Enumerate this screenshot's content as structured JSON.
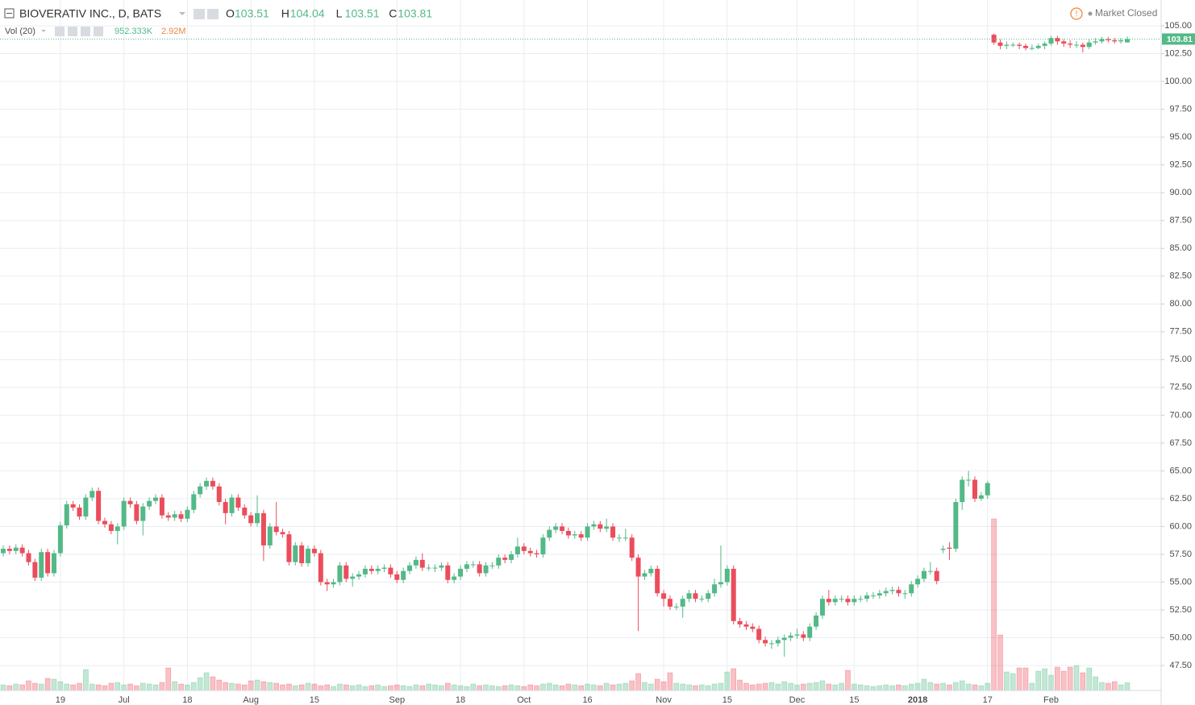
{
  "header": {
    "symbol": "BIOVERATIV INC., D, BATS",
    "ohlc": [
      {
        "label": "O",
        "value": 103.51
      },
      {
        "label": "H",
        "value": 104.04
      },
      {
        "label": "L",
        "value": 103.51
      },
      {
        "label": "C",
        "value": 103.81
      }
    ],
    "volume_indicator": "Vol (20)",
    "volume_value": "952.333K",
    "volume_ma": "2.92M",
    "status": "Market Closed"
  },
  "chart_data": {
    "type": "candlestick",
    "up_color": "#53b987",
    "down_color": "#eb4d5c",
    "grid": true,
    "categories": [
      null,
      null,
      null,
      null,
      null,
      null,
      null,
      null,
      null,
      "19",
      null,
      null,
      null,
      null,
      null,
      null,
      null,
      null,
      null,
      "Jul",
      null,
      null,
      null,
      null,
      null,
      null,
      null,
      null,
      null,
      "18",
      null,
      null,
      null,
      null,
      null,
      null,
      null,
      null,
      null,
      "Aug",
      null,
      null,
      null,
      null,
      null,
      null,
      null,
      null,
      null,
      "15",
      null,
      null,
      null,
      null,
      null,
      null,
      null,
      null,
      null,
      null,
      null,
      null,
      "Sep",
      null,
      null,
      null,
      null,
      null,
      null,
      null,
      null,
      null,
      "18",
      null,
      null,
      null,
      null,
      null,
      null,
      null,
      null,
      null,
      "Oct",
      null,
      null,
      null,
      null,
      null,
      null,
      null,
      null,
      null,
      "16",
      null,
      null,
      null,
      null,
      null,
      null,
      null,
      null,
      null,
      null,
      null,
      "Nov",
      null,
      null,
      null,
      null,
      null,
      null,
      null,
      null,
      null,
      "15",
      null,
      null,
      null,
      null,
      null,
      null,
      null,
      null,
      null,
      null,
      "Dec",
      null,
      null,
      null,
      null,
      null,
      null,
      null,
      null,
      "15",
      null,
      null,
      null,
      null,
      null,
      null,
      null,
      null,
      null,
      "2018",
      null,
      null,
      null,
      null,
      null,
      null,
      null,
      null,
      null,
      null,
      "17",
      null,
      null,
      null,
      null,
      null,
      null,
      null,
      null,
      null,
      "Feb",
      null,
      null,
      null,
      null,
      null,
      null,
      null,
      null,
      null,
      null,
      null,
      null
    ],
    "open": [
      57.6,
      58.0,
      57.8,
      58.1,
      57.6,
      56.8,
      55.4,
      57.7,
      55.8,
      57.6,
      60.1,
      62.0,
      61.7,
      60.9,
      62.6,
      63.2,
      60.5,
      60.2,
      59.6,
      60.0,
      62.3,
      62.0,
      60.5,
      61.8,
      62.3,
      62.6,
      61.0,
      60.8,
      61.1,
      60.7,
      61.5,
      62.9,
      63.6,
      64.1,
      63.6,
      62.2,
      61.2,
      62.6,
      61.7,
      61.0,
      60.3,
      61.2,
      58.3,
      60.0,
      59.5,
      59.3,
      56.8,
      58.3,
      56.7,
      58.0,
      57.6,
      55.0,
      54.8,
      55.0,
      56.5,
      55.3,
      55.5,
      55.7,
      56.2,
      56.0,
      56.2,
      56.3,
      55.7,
      55.2,
      56.0,
      56.5,
      57.0,
      56.3,
      56.3,
      56.3,
      56.5,
      55.2,
      55.5,
      56.2,
      56.6,
      56.6,
      55.8,
      56.5,
      56.5,
      57.2,
      57.0,
      57.5,
      58.2,
      57.8,
      57.6,
      57.5,
      59.0,
      59.7,
      60.0,
      59.6,
      59.2,
      59.3,
      59.0,
      60.0,
      60.2,
      59.8,
      60.0,
      59.0,
      59.0,
      59.0,
      57.2,
      55.5,
      55.8,
      56.2,
      54.0,
      53.5,
      52.8,
      52.8,
      53.5,
      54.0,
      53.5,
      53.5,
      54.0,
      54.8,
      55.0,
      56.2,
      51.5,
      51.2,
      51.0,
      50.8,
      49.8,
      49.5,
      49.5,
      49.8,
      50.0,
      50.2,
      50.3,
      50.0,
      51.0,
      52.0,
      53.5,
      53.2,
      53.5,
      53.5,
      53.2,
      53.5,
      53.5,
      53.8,
      53.8,
      54.0,
      54.2,
      54.3,
      54.0,
      54.0,
      54.8,
      55.3,
      56.0,
      56.0,
      57.9,
      58.1,
      58.0,
      62.2,
      64.2,
      64.2,
      62.5,
      62.8,
      104.2,
      103.5,
      103.2,
      103.3,
      103.3,
      103.2,
      103.0,
      103.0,
      103.2,
      103.4,
      103.9,
      103.6,
      103.4,
      103.3,
      103.3,
      103.1,
      103.5,
      103.6,
      103.8,
      103.7,
      103.6,
      103.51
    ],
    "high": [
      58.3,
      58.3,
      58.4,
      58.4,
      57.9,
      57.1,
      58.0,
      58.0,
      57.9,
      60.4,
      62.3,
      62.3,
      62.0,
      62.9,
      63.5,
      63.5,
      60.8,
      60.5,
      60.3,
      62.6,
      62.6,
      62.3,
      62.1,
      62.6,
      62.9,
      62.9,
      61.3,
      61.4,
      61.4,
      61.8,
      63.2,
      63.9,
      64.4,
      64.4,
      63.9,
      62.5,
      62.9,
      62.9,
      62.0,
      61.3,
      62.8,
      61.5,
      60.3,
      62.2,
      59.8,
      59.6,
      58.6,
      58.6,
      58.3,
      58.3,
      57.9,
      55.3,
      55.3,
      56.8,
      56.8,
      55.8,
      56.0,
      56.5,
      56.5,
      56.5,
      56.6,
      56.6,
      56.0,
      56.3,
      56.8,
      57.3,
      57.6,
      56.6,
      56.6,
      56.8,
      56.8,
      55.8,
      56.5,
      56.9,
      56.9,
      56.9,
      56.8,
      56.8,
      57.5,
      57.5,
      57.8,
      59.0,
      58.5,
      58.1,
      57.9,
      59.3,
      60.0,
      60.3,
      60.3,
      59.9,
      59.6,
      59.6,
      60.3,
      60.5,
      60.5,
      60.7,
      60.3,
      59.3,
      59.8,
      59.3,
      57.5,
      56.1,
      56.5,
      56.5,
      54.3,
      53.8,
      53.1,
      53.8,
      54.3,
      54.3,
      53.8,
      54.3,
      55.3,
      58.3,
      56.5,
      56.5,
      51.8,
      51.5,
      51.3,
      51.1,
      50.1,
      49.8,
      50.1,
      50.3,
      50.5,
      50.8,
      50.6,
      51.3,
      52.3,
      53.8,
      54.3,
      53.8,
      53.8,
      53.8,
      53.8,
      53.8,
      54.1,
      54.1,
      54.3,
      54.5,
      54.6,
      54.6,
      54.3,
      55.1,
      55.6,
      56.3,
      56.8,
      56.3,
      58.3,
      58.6,
      62.5,
      64.5,
      65.0,
      64.5,
      63.1,
      64.1,
      104.3,
      103.8,
      103.6,
      103.5,
      103.5,
      103.4,
      103.3,
      103.4,
      103.6,
      104.1,
      104.1,
      103.8,
      103.7,
      103.6,
      103.5,
      103.8,
      103.9,
      104.0,
      104.0,
      103.9,
      103.9,
      104.04
    ],
    "low": [
      57.3,
      57.5,
      57.5,
      57.3,
      56.5,
      55.1,
      55.1,
      55.5,
      55.5,
      57.3,
      59.8,
      61.4,
      60.6,
      60.6,
      62.3,
      60.2,
      59.9,
      59.3,
      58.4,
      59.7,
      61.7,
      60.2,
      59.2,
      61.5,
      62.0,
      60.7,
      60.5,
      60.5,
      60.4,
      60.4,
      61.2,
      62.6,
      63.3,
      63.3,
      61.9,
      60.2,
      60.9,
      61.4,
      60.7,
      60.0,
      60.0,
      56.9,
      58.0,
      59.2,
      59.0,
      56.5,
      56.5,
      56.4,
      56.4,
      57.3,
      54.7,
      54.2,
      54.5,
      54.7,
      55.0,
      54.6,
      55.2,
      55.4,
      55.7,
      55.7,
      55.9,
      55.4,
      54.9,
      54.9,
      55.7,
      56.2,
      56.0,
      56.0,
      55.9,
      56.0,
      54.9,
      54.9,
      55.2,
      55.9,
      56.3,
      55.5,
      55.5,
      56.2,
      56.2,
      56.7,
      56.7,
      57.2,
      57.5,
      57.3,
      57.2,
      57.2,
      58.7,
      59.4,
      59.3,
      58.9,
      58.9,
      58.7,
      58.7,
      59.7,
      59.5,
      59.5,
      58.7,
      58.6,
      58.7,
      56.9,
      50.6,
      55.2,
      55.5,
      53.7,
      52.8,
      52.5,
      52.5,
      51.8,
      53.2,
      53.2,
      53.2,
      53.2,
      53.7,
      54.5,
      54.7,
      51.2,
      50.9,
      50.7,
      50.5,
      49.5,
      49.2,
      49.0,
      49.2,
      48.3,
      49.7,
      49.9,
      49.7,
      49.7,
      50.7,
      51.7,
      52.9,
      52.9,
      53.2,
      52.9,
      52.9,
      53.2,
      53.2,
      53.5,
      53.5,
      53.7,
      53.9,
      53.7,
      53.5,
      53.7,
      54.5,
      55.0,
      55.7,
      54.8,
      57.6,
      57.0,
      57.7,
      61.5,
      63.6,
      62.2,
      62.3,
      62.5,
      103.3,
      102.9,
      102.9,
      103.1,
      102.9,
      102.8,
      102.8,
      102.9,
      102.9,
      103.2,
      103.3,
      103.1,
      103.0,
      103.0,
      102.6,
      102.9,
      103.3,
      103.4,
      103.5,
      103.4,
      103.4,
      103.51
    ],
    "close": [
      58.0,
      57.8,
      58.1,
      57.6,
      56.8,
      55.4,
      57.7,
      55.8,
      57.6,
      60.1,
      62.0,
      61.7,
      60.9,
      62.6,
      63.2,
      60.5,
      60.2,
      59.6,
      60.0,
      62.3,
      62.0,
      60.5,
      61.8,
      62.3,
      62.6,
      61.0,
      60.8,
      61.1,
      60.7,
      61.5,
      62.9,
      63.6,
      64.1,
      63.6,
      62.2,
      61.2,
      62.6,
      61.7,
      61.0,
      60.3,
      61.2,
      58.3,
      60.0,
      59.5,
      59.3,
      56.8,
      58.3,
      56.7,
      58.0,
      57.6,
      55.0,
      54.8,
      55.0,
      56.5,
      55.3,
      55.5,
      55.7,
      56.2,
      56.0,
      56.2,
      56.3,
      55.7,
      55.2,
      56.0,
      56.5,
      57.0,
      56.3,
      56.3,
      56.3,
      56.5,
      55.2,
      55.5,
      56.2,
      56.6,
      56.6,
      55.8,
      56.5,
      56.5,
      57.2,
      57.0,
      57.5,
      58.2,
      57.8,
      57.6,
      57.5,
      59.0,
      59.7,
      60.0,
      59.6,
      59.2,
      59.3,
      59.0,
      60.0,
      60.2,
      59.8,
      60.0,
      59.0,
      59.0,
      59.0,
      57.2,
      55.5,
      55.8,
      56.2,
      54.0,
      53.5,
      52.8,
      52.8,
      53.5,
      54.0,
      53.5,
      53.5,
      54.0,
      54.8,
      55.0,
      56.2,
      51.5,
      51.2,
      51.0,
      50.8,
      49.8,
      49.5,
      49.5,
      49.8,
      50.0,
      50.2,
      50.3,
      50.0,
      51.0,
      52.0,
      53.5,
      53.2,
      53.5,
      53.5,
      53.2,
      53.5,
      53.5,
      53.8,
      53.8,
      54.0,
      54.2,
      54.3,
      54.0,
      54.0,
      54.8,
      55.3,
      56.0,
      56.0,
      55.1,
      58.0,
      58.0,
      62.2,
      64.2,
      64.2,
      62.5,
      62.8,
      63.9,
      103.5,
      103.2,
      103.3,
      103.3,
      103.2,
      103.0,
      103.0,
      103.2,
      103.4,
      103.9,
      103.6,
      103.4,
      103.3,
      103.3,
      103.1,
      103.5,
      103.6,
      103.8,
      103.7,
      103.6,
      103.7,
      103.81
    ],
    "volume": [
      0.7,
      0.6,
      0.8,
      0.7,
      1.2,
      0.9,
      0.8,
      1.5,
      1.4,
      1.1,
      0.8,
      0.7,
      0.9,
      2.6,
      0.8,
      0.7,
      0.6,
      0.9,
      1.0,
      0.7,
      0.8,
      0.6,
      0.9,
      0.8,
      0.7,
      1.0,
      2.8,
      1.1,
      0.8,
      0.7,
      1.0,
      1.6,
      2.2,
      1.7,
      1.3,
      1.0,
      0.9,
      0.8,
      0.7,
      1.2,
      1.3,
      1.1,
      1.0,
      0.9,
      0.7,
      0.8,
      0.6,
      0.7,
      0.9,
      0.8,
      0.6,
      0.7,
      0.5,
      0.8,
      0.7,
      0.6,
      0.7,
      0.5,
      0.6,
      0.7,
      0.5,
      0.6,
      0.7,
      0.6,
      0.5,
      0.7,
      0.6,
      0.8,
      0.7,
      0.6,
      0.9,
      0.7,
      0.6,
      0.5,
      0.8,
      0.6,
      0.7,
      0.6,
      0.5,
      0.6,
      0.7,
      0.6,
      0.5,
      0.7,
      0.6,
      0.8,
      0.9,
      0.7,
      0.6,
      0.8,
      0.7,
      0.6,
      0.8,
      0.7,
      0.6,
      0.9,
      0.7,
      0.8,
      0.9,
      1.2,
      2.1,
      1.0,
      0.8,
      1.4,
      1.1,
      2.2,
      0.9,
      0.8,
      0.7,
      0.6,
      0.7,
      0.6,
      0.8,
      0.9,
      2.3,
      2.7,
      1.3,
      0.9,
      0.7,
      0.8,
      0.9,
      1.0,
      0.8,
      1.1,
      0.9,
      0.7,
      0.8,
      0.9,
      1.0,
      1.2,
      0.8,
      0.7,
      0.9,
      2.5,
      0.8,
      0.7,
      0.6,
      0.5,
      0.6,
      0.7,
      0.6,
      0.7,
      0.6,
      0.8,
      0.9,
      1.4,
      1.0,
      0.8,
      0.9,
      0.7,
      1.0,
      1.2,
      0.8,
      0.7,
      0.6,
      0.9,
      21.3,
      6.9,
      2.3,
      2.1,
      2.8,
      2.8,
      0.9,
      2.4,
      2.7,
      1.9,
      2.9,
      2.4,
      2.9,
      3.1,
      2.2,
      2.8,
      1.7,
      1.0,
      0.9,
      1.1,
      0.7,
      0.95
    ],
    "ylim": [
      45.26,
      107.32
    ],
    "yticks": [
      {
        "value": 47.5,
        "label": "47.50"
      },
      {
        "value": 50,
        "label": "50.00"
      },
      {
        "value": 52.5,
        "label": "52.50"
      },
      {
        "value": 55,
        "label": "55.00"
      },
      {
        "value": 57.5,
        "label": "57.50"
      },
      {
        "value": 60,
        "label": "60.00"
      },
      {
        "value": 62.5,
        "label": "62.50"
      },
      {
        "value": 65,
        "label": "65.00"
      },
      {
        "value": 67.5,
        "label": "67.50"
      },
      {
        "value": 70,
        "label": "70.00"
      },
      {
        "value": 72.5,
        "label": "72.50"
      },
      {
        "value": 75,
        "label": "75.00"
      },
      {
        "value": 77.5,
        "label": "77.50"
      },
      {
        "value": 80,
        "label": "80.00"
      },
      {
        "value": 82.5,
        "label": "82.50"
      },
      {
        "value": 85,
        "label": "85.00"
      },
      {
        "value": 87.5,
        "label": "87.50"
      },
      {
        "value": 90,
        "label": "90.00"
      },
      {
        "value": 92.5,
        "label": "92.50"
      },
      {
        "value": 95,
        "label": "95.00"
      },
      {
        "value": 97.5,
        "label": "97.50"
      },
      {
        "value": 100,
        "label": "100.00"
      },
      {
        "value": 102.5,
        "label": "102.50"
      },
      {
        "value": 105,
        "label": "105.00"
      }
    ]
  }
}
